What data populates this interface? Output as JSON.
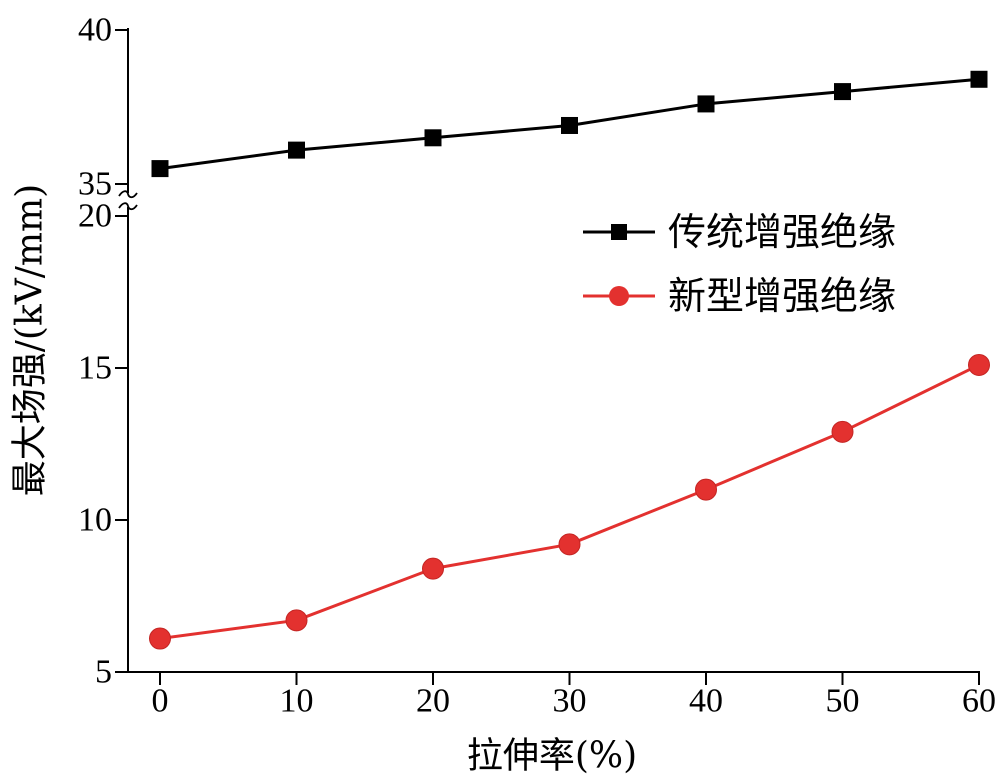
{
  "chart_data": {
    "type": "line",
    "xlabel": "拉伸率(%)",
    "ylabel": "最大场强/(kV/mm)",
    "x": [
      0,
      10,
      20,
      30,
      40,
      50,
      60
    ],
    "x_ticks": [
      0,
      10,
      20,
      30,
      40,
      50,
      60
    ],
    "xlim": [
      0,
      60
    ],
    "y_axis_break": true,
    "ylim_upper": [
      35,
      40
    ],
    "ylim_lower": [
      5,
      20
    ],
    "y_ticks_upper": [
      35,
      40
    ],
    "y_ticks_lower": [
      5,
      10,
      15,
      20
    ],
    "grid": false,
    "legend_position": "center-right",
    "series": [
      {
        "name": "传统增强绝缘",
        "color": "#000000",
        "marker": "square",
        "values": [
          35.5,
          36.1,
          36.5,
          36.9,
          37.6,
          38.0,
          38.4
        ]
      },
      {
        "name": "新型增强绝缘",
        "color": "#e3312f",
        "marker": "circle",
        "values": [
          6.1,
          6.7,
          8.4,
          9.2,
          11.0,
          12.9,
          15.1
        ]
      }
    ]
  }
}
